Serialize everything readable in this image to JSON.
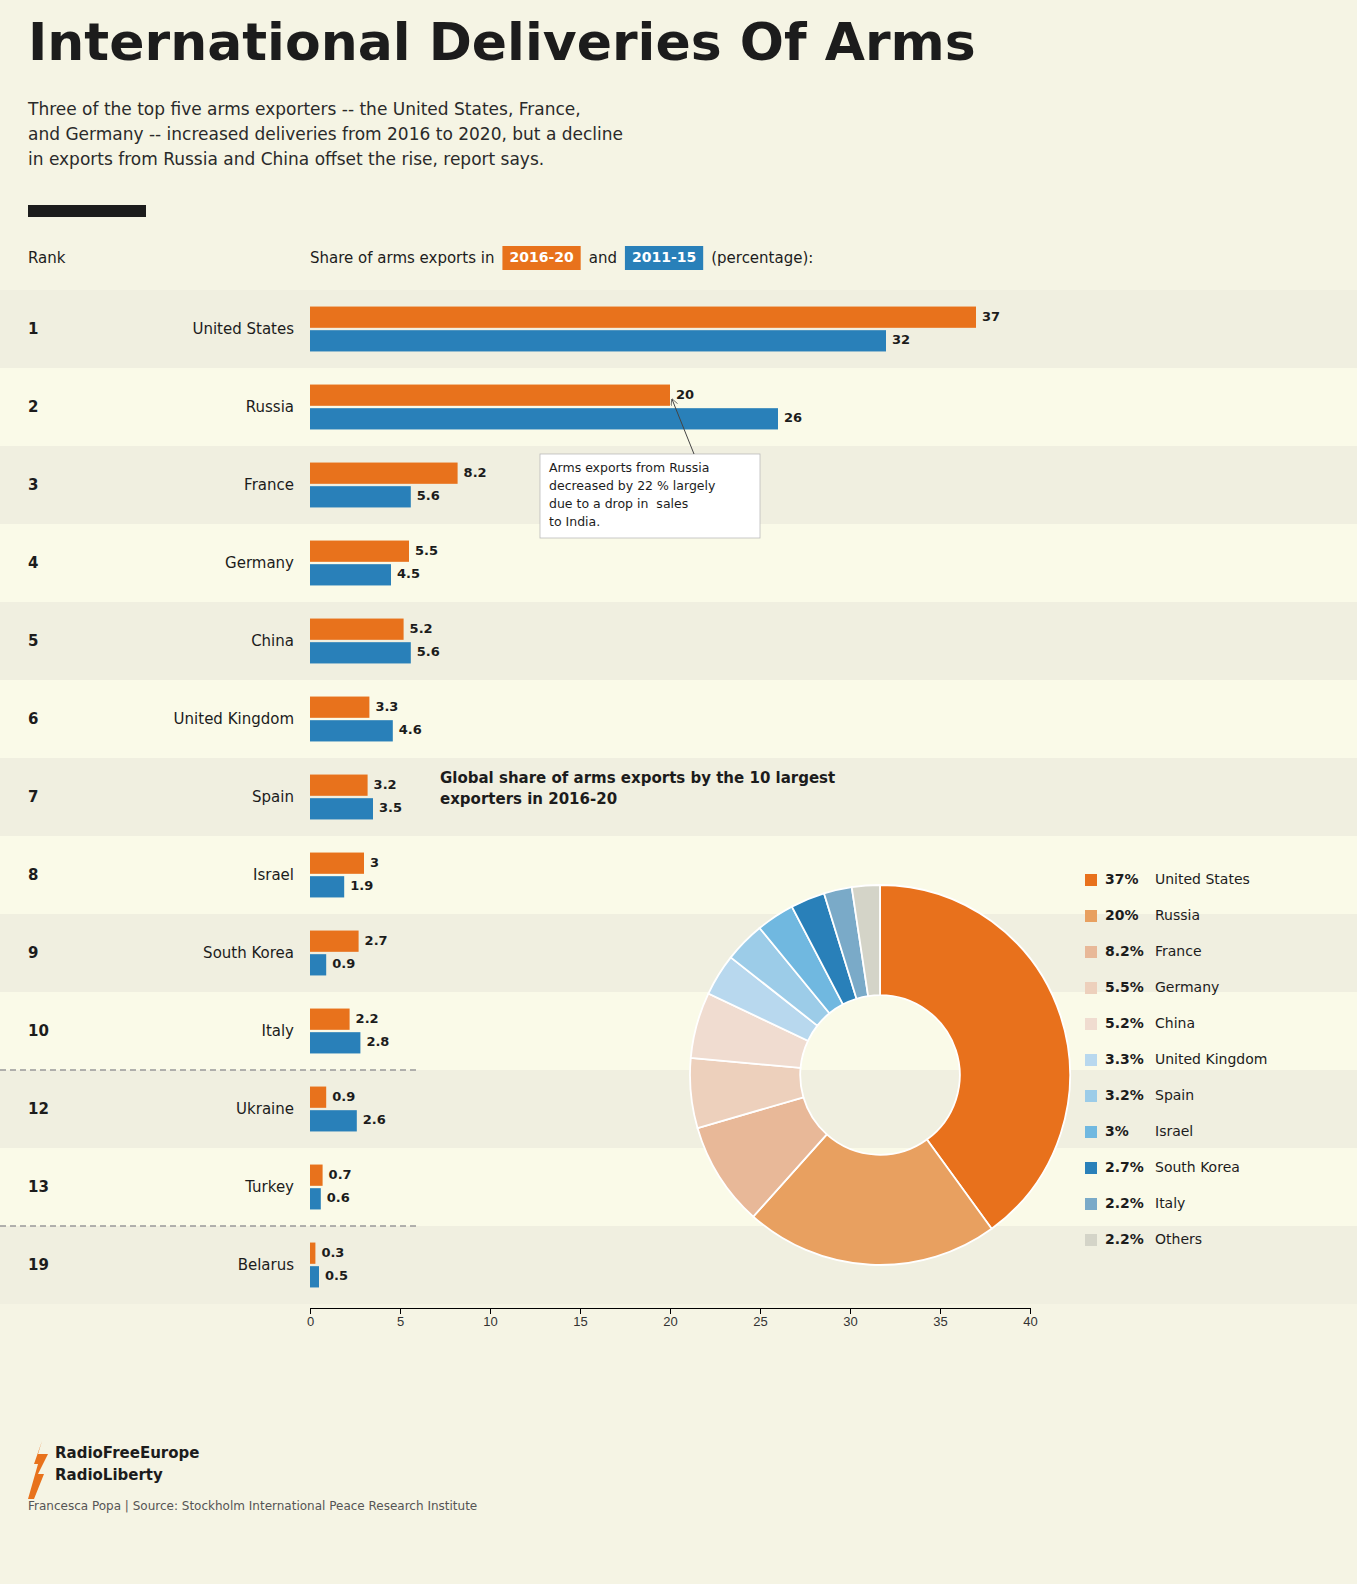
{
  "chart_data": [
    {
      "type": "bar",
      "orientation": "horizontal",
      "title": "International Deliveries Of Arms",
      "subtitle": "Three of the top five arms exporters -- the United States, France,\nand Germany -- increased deliveries from 2016 to 2020, but a decline\nin exports from Russia and China offset the rise, report says.",
      "ylabel": "Rank",
      "xlabel": [
        "Share of arms exports in",
        "and",
        "(percentage):"
      ],
      "ranks": [
        "1",
        "2",
        "3",
        "4",
        "5",
        "6",
        "7",
        "8",
        "9",
        "10",
        "12",
        "13",
        "19"
      ],
      "categories": [
        "United States",
        "Russia",
        "France",
        "Germany",
        "China",
        "United Kingdom",
        "Spain",
        "Israel",
        "South Korea",
        "Italy",
        "Ukraine",
        "Turkey",
        "Belarus"
      ],
      "series": [
        {
          "name": "2016-20",
          "color": "#e8721c",
          "values": [
            37,
            20,
            8.2,
            5.5,
            5.2,
            3.3,
            3.2,
            3,
            2.7,
            2.2,
            0.9,
            0.7,
            0.3
          ]
        },
        {
          "name": "2011-15",
          "color": "#2980b9",
          "values": [
            32,
            26,
            5.6,
            4.5,
            5.6,
            4.6,
            3.5,
            1.9,
            0.9,
            2.8,
            2.6,
            0.6,
            0.5
          ]
        }
      ],
      "xlim": [
        0,
        40
      ],
      "xticks": [
        0,
        5,
        10,
        15,
        20,
        25,
        30,
        35,
        40
      ],
      "data_labels": true,
      "grid": false,
      "annotation": "Arms exports from Russia\ndecreased by 22 % largely\ndue to a drop in  sales\nto India.",
      "footer": [
        "RadioFreeEurope",
        "RadioLiberty"
      ],
      "source": "Francesca Popa | Source: Stockholm International Peace Research Institute"
    },
    {
      "type": "pie",
      "title": "Global share of arms exports by the 10 largest\nexporters in 2016-20",
      "categories": [
        "United States",
        "Russia",
        "France",
        "Germany",
        "China",
        "United Kingdom",
        "Spain",
        "Israel",
        "South Korea",
        "Italy",
        "Others"
      ],
      "values": [
        37,
        20,
        8.2,
        5.5,
        5.2,
        3.3,
        3.2,
        3,
        2.7,
        2.2,
        2.2
      ],
      "value_labels": [
        "37%",
        "20%",
        "8.2%",
        "5.5%",
        "5.2%",
        "3.3%",
        "3.2%",
        "3%",
        "2.7%",
        "2.2%",
        "2.2%"
      ],
      "colors": [
        "#e8711c",
        "#e8a060",
        "#e8b898",
        "#edd0bc",
        "#f0dcd0",
        "#b8d8ee",
        "#9ccce8",
        "#70b8e0",
        "#2980b9",
        "#7aaac8",
        "#d4d4c8"
      ],
      "data_labels": true
    }
  ]
}
